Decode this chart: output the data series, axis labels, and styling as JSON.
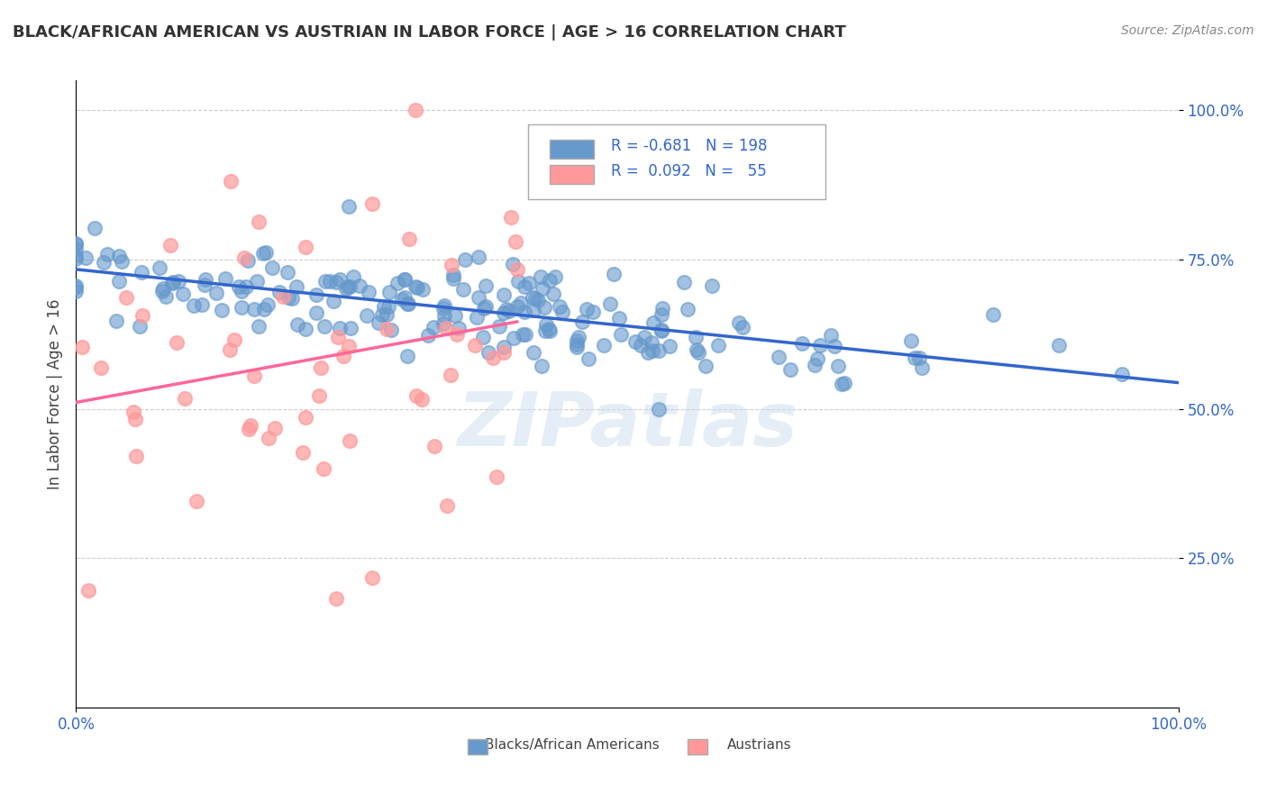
{
  "title": "BLACK/AFRICAN AMERICAN VS AUSTRIAN IN LABOR FORCE | AGE > 16 CORRELATION CHART",
  "source": "Source: ZipAtlas.com",
  "ylabel": "In Labor Force | Age > 16",
  "xlabel": "",
  "x_tick_labels": [
    "0.0%",
    "100.0%"
  ],
  "y_tick_labels_right": [
    "25.0%",
    "50.0%",
    "75.0%",
    "100.0%"
  ],
  "legend_blue_r": "-0.681",
  "legend_blue_n": "198",
  "legend_pink_r": "0.092",
  "legend_pink_n": "55",
  "legend_blue_label": "Blacks/African Americans",
  "legend_pink_label": "Austrians",
  "blue_color": "#6699CC",
  "pink_color": "#FF9999",
  "trend_blue_color": "#3366CC",
  "trend_pink_color": "#FF6699",
  "blue_r": -0.681,
  "blue_n": 198,
  "pink_r": 0.092,
  "pink_n": 55,
  "bg_color": "#FFFFFF",
  "grid_color": "#CCCCCC",
  "title_color": "#333333",
  "watermark": "ZIPatlas",
  "watermark_color": "#CCDDEE",
  "seed": 42
}
